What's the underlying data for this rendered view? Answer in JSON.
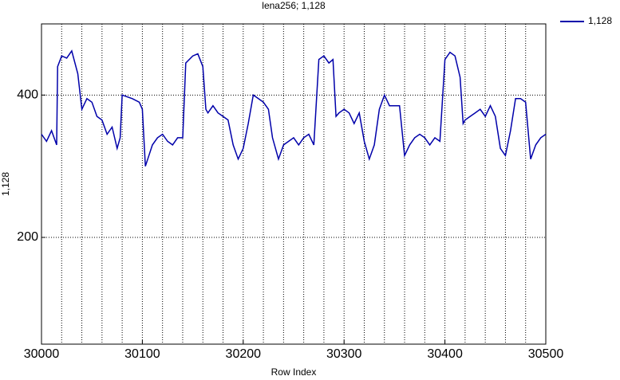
{
  "chart_data": {
    "type": "line",
    "title": "lena256; 1,128",
    "x_label": "Row Index",
    "y_label": "1,128",
    "x": [
      30000,
      30005,
      30010,
      30015,
      30016,
      30020,
      30025,
      30030,
      30036,
      30040,
      30045,
      30050,
      30055,
      30060,
      30065,
      30070,
      30075,
      30078,
      30080,
      30090,
      30097,
      30100,
      30103,
      30110,
      30115,
      30120,
      30125,
      30130,
      30135,
      30140,
      30143,
      30150,
      30155,
      30160,
      30163,
      30165,
      30170,
      30175,
      30180,
      30185,
      30190,
      30195,
      30200,
      30205,
      30210,
      30215,
      30220,
      30225,
      30229,
      30235,
      30240,
      30245,
      30250,
      30255,
      30260,
      30265,
      30270,
      30275,
      30280,
      30285,
      30289,
      30292,
      30295,
      30300,
      30305,
      30310,
      30315,
      30320,
      30325,
      30330,
      30335,
      30340,
      30345,
      30350,
      30355,
      30360,
      30365,
      30370,
      30375,
      30380,
      30385,
      30390,
      30395,
      30400,
      30405,
      30410,
      30415,
      30418,
      30420,
      30425,
      30430,
      30435,
      30440,
      30445,
      30450,
      30455,
      30460,
      30465,
      30470,
      30475,
      30480,
      30485,
      30490,
      30495,
      30500
    ],
    "series": [
      {
        "name": "1,128",
        "color": "#0000aa",
        "values": [
          345,
          335,
          350,
          330,
          440,
          455,
          452,
          462,
          430,
          380,
          395,
          390,
          370,
          365,
          345,
          355,
          325,
          340,
          400,
          395,
          390,
          380,
          300,
          330,
          340,
          345,
          335,
          330,
          340,
          340,
          445,
          455,
          458,
          440,
          380,
          375,
          385,
          375,
          370,
          365,
          330,
          310,
          325,
          360,
          400,
          395,
          390,
          380,
          340,
          310,
          330,
          335,
          340,
          330,
          340,
          345,
          330,
          450,
          455,
          445,
          450,
          370,
          375,
          380,
          375,
          360,
          375,
          335,
          310,
          330,
          380,
          400,
          385,
          385,
          385,
          315,
          330,
          340,
          345,
          340,
          330,
          340,
          335,
          450,
          460,
          455,
          425,
          360,
          365,
          370,
          375,
          380,
          370,
          385,
          370,
          325,
          315,
          350,
          395,
          395,
          390,
          310,
          330,
          340,
          345
        ]
      }
    ],
    "xlim": [
      30000,
      30500
    ],
    "xticks": [
      30000,
      30100,
      30200,
      30300,
      30400,
      30500
    ],
    "xgrid": [
      30000,
      30020,
      30040,
      30060,
      30080,
      30100,
      30120,
      30140,
      30160,
      30180,
      30200,
      30220,
      30240,
      30260,
      30280,
      30300,
      30320,
      30340,
      30360,
      30380,
      30400,
      30420,
      30440,
      30460,
      30480,
      30500
    ],
    "ylim": [
      50,
      500
    ],
    "yticks": [
      200,
      400
    ],
    "grid": true,
    "legend": "outside-right"
  }
}
